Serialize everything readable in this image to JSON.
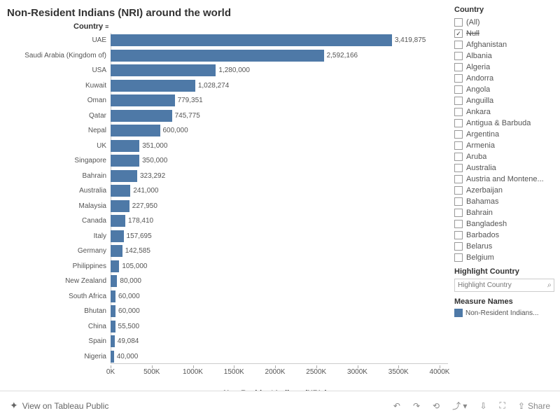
{
  "title": "Non-Resident Indians (NRI) around the world",
  "chart": {
    "type": "bar",
    "y_axis_title": "Country",
    "x_axis_title": "Non-Resident Indians (NRIs)",
    "bar_color": "#4e79a7",
    "x_max": 4000000,
    "x_ticks": [
      {
        "pos": 0,
        "label": "0K"
      },
      {
        "pos": 500000,
        "label": "500K"
      },
      {
        "pos": 1000000,
        "label": "1000K"
      },
      {
        "pos": 1500000,
        "label": "1500K"
      },
      {
        "pos": 2000000,
        "label": "2000K"
      },
      {
        "pos": 2500000,
        "label": "2500K"
      },
      {
        "pos": 3000000,
        "label": "3000K"
      },
      {
        "pos": 3500000,
        "label": "3500K"
      },
      {
        "pos": 4000000,
        "label": "4000K"
      }
    ],
    "rows": [
      {
        "label": "UAE",
        "value": 3419875,
        "display": "3,419,875"
      },
      {
        "label": "Saudi Arabia (Kingdom of)",
        "value": 2592166,
        "display": "2,592,166"
      },
      {
        "label": "USA",
        "value": 1280000,
        "display": "1,280,000"
      },
      {
        "label": "Kuwait",
        "value": 1028274,
        "display": "1,028,274"
      },
      {
        "label": "Oman",
        "value": 779351,
        "display": "779,351"
      },
      {
        "label": "Qatar",
        "value": 745775,
        "display": "745,775"
      },
      {
        "label": "Nepal",
        "value": 600000,
        "display": "600,000"
      },
      {
        "label": "UK",
        "value": 351000,
        "display": "351,000"
      },
      {
        "label": "Singapore",
        "value": 350000,
        "display": "350,000"
      },
      {
        "label": "Bahrain",
        "value": 323292,
        "display": "323,292"
      },
      {
        "label": "Australia",
        "value": 241000,
        "display": "241,000"
      },
      {
        "label": "Malaysia",
        "value": 227950,
        "display": "227,950"
      },
      {
        "label": "Canada",
        "value": 178410,
        "display": "178,410"
      },
      {
        "label": "Italy",
        "value": 157695,
        "display": "157,695"
      },
      {
        "label": "Germany",
        "value": 142585,
        "display": "142,585"
      },
      {
        "label": "Philippines",
        "value": 105000,
        "display": "105,000"
      },
      {
        "label": "New Zealand",
        "value": 80000,
        "display": "80,000"
      },
      {
        "label": "South Africa",
        "value": 60000,
        "display": "60,000"
      },
      {
        "label": "Bhutan",
        "value": 60000,
        "display": "60,000"
      },
      {
        "label": "China",
        "value": 55500,
        "display": "55,500"
      },
      {
        "label": "Spain",
        "value": 49084,
        "display": "49,084"
      },
      {
        "label": "Nigeria",
        "value": 40000,
        "display": "40,000"
      }
    ]
  },
  "sidebar": {
    "filter_title": "Country",
    "filters": [
      {
        "label": "(All)",
        "checked": false,
        "strike": false
      },
      {
        "label": "Null",
        "checked": true,
        "strike": true
      },
      {
        "label": "Afghanistan",
        "checked": false,
        "strike": false
      },
      {
        "label": "Albania",
        "checked": false,
        "strike": false
      },
      {
        "label": "Algeria",
        "checked": false,
        "strike": false
      },
      {
        "label": "Andorra",
        "checked": false,
        "strike": false
      },
      {
        "label": "Angola",
        "checked": false,
        "strike": false
      },
      {
        "label": "Anguilla",
        "checked": false,
        "strike": false
      },
      {
        "label": "Ankara",
        "checked": false,
        "strike": false
      },
      {
        "label": "Antigua & Barbuda",
        "checked": false,
        "strike": false
      },
      {
        "label": "Argentina",
        "checked": false,
        "strike": false
      },
      {
        "label": "Armenia",
        "checked": false,
        "strike": false
      },
      {
        "label": "Aruba",
        "checked": false,
        "strike": false
      },
      {
        "label": "Australia",
        "checked": false,
        "strike": false
      },
      {
        "label": "Austria and Montene...",
        "checked": false,
        "strike": false
      },
      {
        "label": "Azerbaijan",
        "checked": false,
        "strike": false
      },
      {
        "label": "Bahamas",
        "checked": false,
        "strike": false
      },
      {
        "label": "Bahrain",
        "checked": false,
        "strike": false
      },
      {
        "label": "Bangladesh",
        "checked": false,
        "strike": false
      },
      {
        "label": "Barbados",
        "checked": false,
        "strike": false
      },
      {
        "label": "Belarus",
        "checked": false,
        "strike": false
      },
      {
        "label": "Belgium",
        "checked": false,
        "strike": false
      }
    ],
    "highlight_title": "Highlight Country",
    "highlight_placeholder": "Highlight Country",
    "measure_title": "Measure Names",
    "measure_label": "Non-Resident Indians...",
    "measure_color": "#4e79a7"
  },
  "footer": {
    "view_label": "View on Tableau Public",
    "share_label": "Share"
  }
}
